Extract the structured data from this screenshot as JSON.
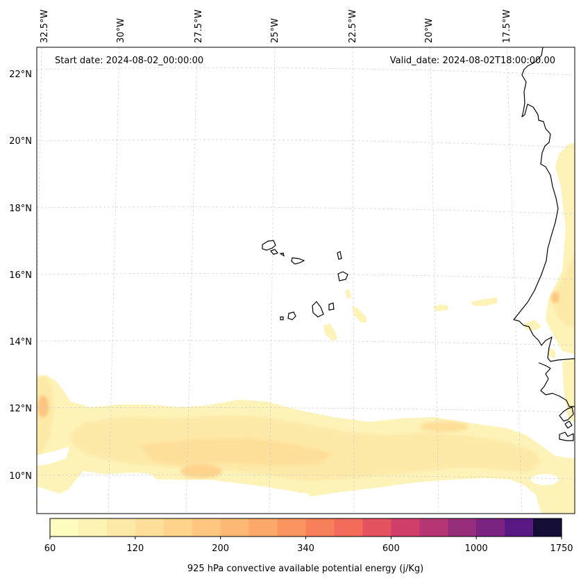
{
  "map": {
    "start_date": "Start date: 2024-08-02_00:00:00",
    "valid_date": "Valid_date: 2024-08-02T18:00:00.00",
    "lon_labels": [
      "32.5°W",
      "30°W",
      "27.5°W",
      "25°W",
      "22.5°W",
      "20°W",
      "17.5°W"
    ],
    "lat_labels": [
      "22°N",
      "20°N",
      "18°N",
      "16°N",
      "14°N",
      "12°N",
      "10°N"
    ],
    "gridlines": "dashed, light gray"
  },
  "colorbar": {
    "title": "925 hPa convective available potential energy (j/Kg)",
    "tick_labels": [
      "60",
      "120",
      "200",
      "340",
      "600",
      "1000",
      "1750"
    ],
    "colors": [
      "#fcfdbf",
      "#fcf3b5",
      "#fde9a7",
      "#fedf99",
      "#fed38c",
      "#fec67f",
      "#fdb874",
      "#fca86a",
      "#fa9460",
      "#f7805b",
      "#f16a5a",
      "#e5525f",
      "#d03f6a",
      "#b63575",
      "#962e7c",
      "#7a2380",
      "#581882",
      "#140e36"
    ]
  }
}
